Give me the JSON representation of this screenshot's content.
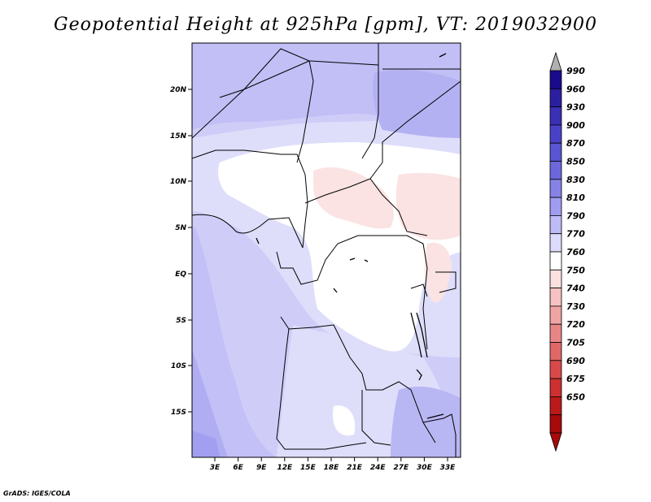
{
  "title": "Geopotential Height at 925hPa [gpm], VT: 2019032900",
  "credit": "GrADS: IGES/COLA",
  "map": {
    "lat_ticks": [
      "20N",
      "15N",
      "10N",
      "5N",
      "EQ",
      "5S",
      "10S",
      "15S"
    ],
    "lon_ticks": [
      "3E",
      "6E",
      "9E",
      "12E",
      "15E",
      "18E",
      "21E",
      "24E",
      "27E",
      "30E",
      "33E"
    ]
  },
  "colorbar": {
    "labels": [
      "990",
      "960",
      "930",
      "900",
      "870",
      "850",
      "830",
      "810",
      "790",
      "770",
      "760",
      "750",
      "740",
      "730",
      "720",
      "705",
      "690",
      "675",
      "650"
    ],
    "colors": [
      "#1a0a8c",
      "#2b1fa0",
      "#3a30b4",
      "#4a42c6",
      "#5a55d2",
      "#6c68dc",
      "#8682e6",
      "#a09df0",
      "#bebcf6",
      "#dcdbfb",
      "#ffffff",
      "#fbe0e0",
      "#f6c2c2",
      "#f0a4a4",
      "#e88686",
      "#e06868",
      "#d84a4a",
      "#cc3030",
      "#bb1a1a",
      "#a80a0a"
    ],
    "top_arrow_color": "#b0b0b0",
    "bottom_arrow_color": "#a80a0a"
  }
}
